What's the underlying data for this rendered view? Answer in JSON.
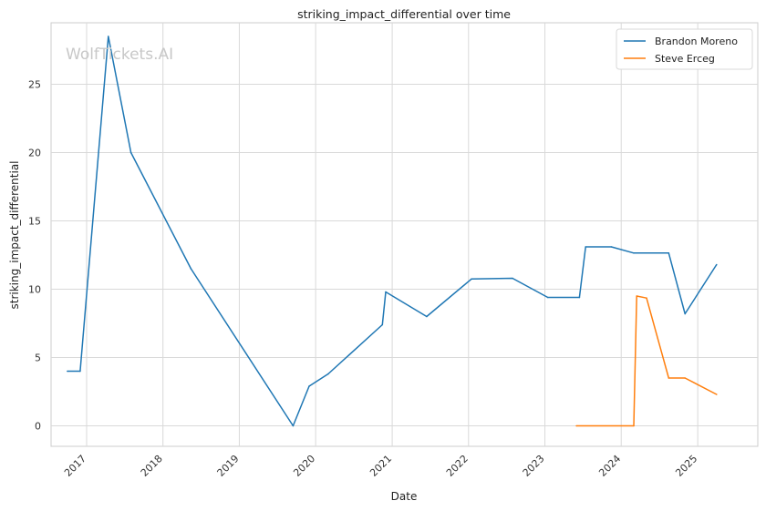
{
  "chart_data": {
    "type": "line",
    "title": "striking_impact_differential over time",
    "xlabel": "Date",
    "ylabel": "striking_impact_differential",
    "watermark": "WolfTickets.AI",
    "x_ticks": [
      "2017",
      "2018",
      "2019",
      "2020",
      "2021",
      "2022",
      "2023",
      "2024",
      "2025"
    ],
    "y_ticks": [
      0,
      5,
      10,
      15,
      20,
      25
    ],
    "xlim": [
      "2016-07-15",
      "2025-10-15"
    ],
    "ylim": [
      -1.5,
      29.5
    ],
    "grid": true,
    "legend_position": "top-right",
    "series": [
      {
        "name": "Brandon Moreno",
        "color": "#1f77b4",
        "points": [
          [
            "2016-10-01",
            4.0
          ],
          [
            "2016-12-01",
            4.0
          ],
          [
            "2017-04-15",
            28.5
          ],
          [
            "2017-08-01",
            20.0
          ],
          [
            "2018-05-15",
            11.5
          ],
          [
            "2019-09-15",
            0.0
          ],
          [
            "2019-12-01",
            2.9
          ],
          [
            "2020-03-01",
            3.8
          ],
          [
            "2020-11-15",
            7.4
          ],
          [
            "2020-12-01",
            9.8
          ],
          [
            "2021-06-15",
            8.0
          ],
          [
            "2022-01-15",
            10.75
          ],
          [
            "2022-07-30",
            10.8
          ],
          [
            "2023-01-15",
            9.4
          ],
          [
            "2023-06-15",
            9.4
          ],
          [
            "2023-07-15",
            13.1
          ],
          [
            "2023-11-15",
            13.1
          ],
          [
            "2024-03-01",
            12.65
          ],
          [
            "2024-08-15",
            12.65
          ],
          [
            "2024-11-01",
            8.2
          ],
          [
            "2025-04-01",
            11.8
          ]
        ]
      },
      {
        "name": "Steve Erceg",
        "color": "#ff7f0e",
        "points": [
          [
            "2023-06-01",
            0.0
          ],
          [
            "2024-03-01",
            0.0
          ],
          [
            "2024-03-15",
            9.5
          ],
          [
            "2024-05-01",
            9.35
          ],
          [
            "2024-08-15",
            3.5
          ],
          [
            "2024-11-01",
            3.5
          ],
          [
            "2025-04-01",
            2.3
          ]
        ]
      }
    ]
  }
}
